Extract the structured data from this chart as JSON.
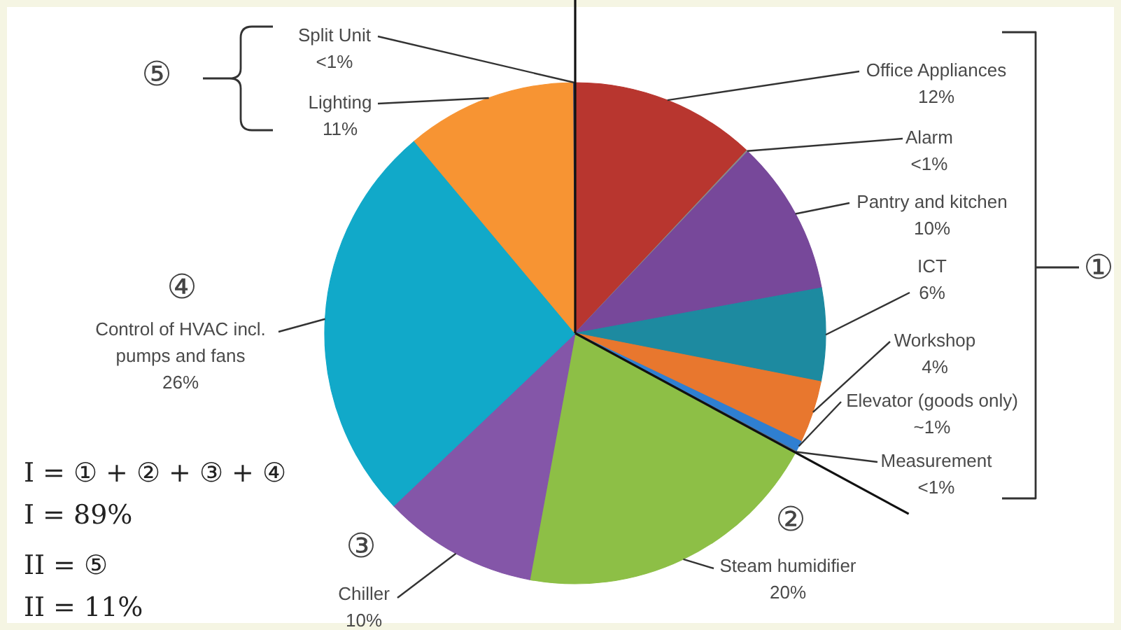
{
  "chart_data": {
    "type": "pie",
    "categories": [
      "Office Appliances",
      "Alarm",
      "Pantry and kitchen",
      "ICT",
      "Workshop",
      "Elevator (goods only)",
      "Measurement",
      "Steam humidifier",
      "Chiller",
      "Control of HVAC incl. pumps and fans",
      "Lighting",
      "Split Unit"
    ],
    "values": [
      12,
      0.1,
      10,
      6,
      4,
      0.7,
      0.1,
      20,
      10,
      26,
      11,
      0.1
    ],
    "colors": [
      "#b8362f",
      "#8a8a8a",
      "#77489a",
      "#1d8aa0",
      "#e8772e",
      "#2f7fd1",
      "#5a6e8a",
      "#8dbf46",
      "#8456a8",
      "#11a9c9",
      "#f79433",
      "#2b3f78"
    ],
    "value_labels": [
      "12%",
      "<1%",
      "10%",
      "6%",
      "4%",
      "~1%",
      "<1%",
      "20%",
      "10%",
      "26%",
      "11%",
      "<1%"
    ],
    "annotations": [
      "⑤",
      "①",
      "④",
      "②",
      "③",
      "I = ① + ② + ③ + ④",
      "I = 89%",
      "II = ⑤",
      "II = 11%"
    ]
  }
}
